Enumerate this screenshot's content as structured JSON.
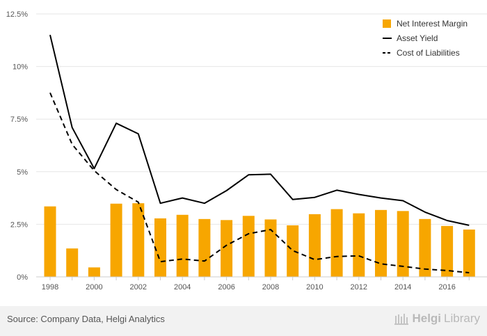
{
  "chart_data": {
    "type": "bar",
    "categories": [
      "1998",
      "1999",
      "2000",
      "2001",
      "2002",
      "2003",
      "2004",
      "2005",
      "2006",
      "2007",
      "2008",
      "2009",
      "2010",
      "2011",
      "2012",
      "2013",
      "2014",
      "2015",
      "2016",
      "2017"
    ],
    "x_tick_labels": [
      "1998",
      "2000",
      "2002",
      "2004",
      "2006",
      "2008",
      "2010",
      "2012",
      "2014",
      "2016"
    ],
    "y_tick_labels": [
      "0%",
      "2.5%",
      "5%",
      "7.5%",
      "10%",
      "12.5%"
    ],
    "ylim": [
      0,
      12.5
    ],
    "grid": true,
    "legend_position": "top-right",
    "series": [
      {
        "name": "Net Interest Margin",
        "type": "bar",
        "color": "#f7a600",
        "values": [
          3.35,
          1.35,
          0.45,
          3.48,
          3.5,
          2.78,
          2.95,
          2.75,
          2.7,
          2.9,
          2.73,
          2.45,
          2.98,
          3.22,
          3.02,
          3.18,
          3.13,
          2.75,
          2.42,
          2.25
        ]
      },
      {
        "name": "Asset Yield",
        "type": "line",
        "style": "solid",
        "color": "#000000",
        "values": [
          11.5,
          7.1,
          5.15,
          7.3,
          6.8,
          3.5,
          3.75,
          3.5,
          4.1,
          4.85,
          4.88,
          3.68,
          3.78,
          4.12,
          3.92,
          3.75,
          3.62,
          3.08,
          2.68,
          2.45
        ]
      },
      {
        "name": "Cost of Liabilities",
        "type": "line",
        "style": "dashed",
        "color": "#000000",
        "values": [
          8.75,
          6.3,
          5.05,
          4.15,
          3.55,
          0.72,
          0.85,
          0.75,
          1.5,
          2.05,
          2.25,
          1.25,
          0.82,
          0.97,
          1.0,
          0.62,
          0.5,
          0.37,
          0.3,
          0.2
        ]
      }
    ]
  },
  "footer": {
    "source": "Source: Company Data, Helgi Analytics",
    "brand_main": "Helgi",
    "brand_sub": "Library"
  },
  "colors": {
    "bar": "#f7a600",
    "grid": "#e6e6e6",
    "footer_bg": "#f2f2f2"
  }
}
